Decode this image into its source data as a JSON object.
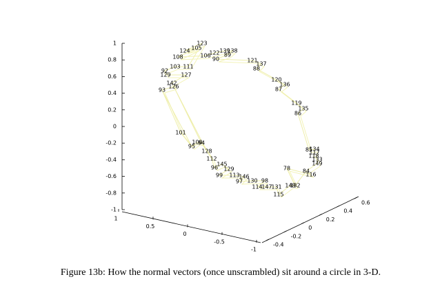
{
  "figure": {
    "zticks": [
      1,
      0.8,
      0.6,
      0.4,
      0.2,
      0,
      -0.2,
      -0.4,
      -0.6,
      -0.8,
      -1
    ],
    "xticks": [
      1,
      0.5,
      0,
      -0.5,
      -1
    ],
    "yticks": [
      -0.4,
      -0.2,
      0,
      0.2,
      0.4,
      0.6
    ],
    "point_labels": [
      "123",
      "124",
      "105",
      "108",
      "106",
      "122",
      "139",
      "138",
      "89",
      "90",
      "121",
      "137",
      "88",
      "120",
      "136",
      "87",
      "119",
      "135",
      "86",
      "85",
      "134",
      "117",
      "118",
      "133",
      "149",
      "84",
      "116",
      "78",
      "132",
      "148",
      "115",
      "131",
      "147",
      "114",
      "98",
      "130",
      "97",
      "146",
      "113",
      "99",
      "129",
      "145",
      "96",
      "112",
      "128",
      "94",
      "100",
      "95",
      "101",
      "93",
      "126",
      "142",
      "127",
      "129",
      "92",
      "103",
      "111"
    ],
    "caption": "Figure 13b: How the normal vectors (once unscrambled) sit around a circle in 3-D."
  }
}
